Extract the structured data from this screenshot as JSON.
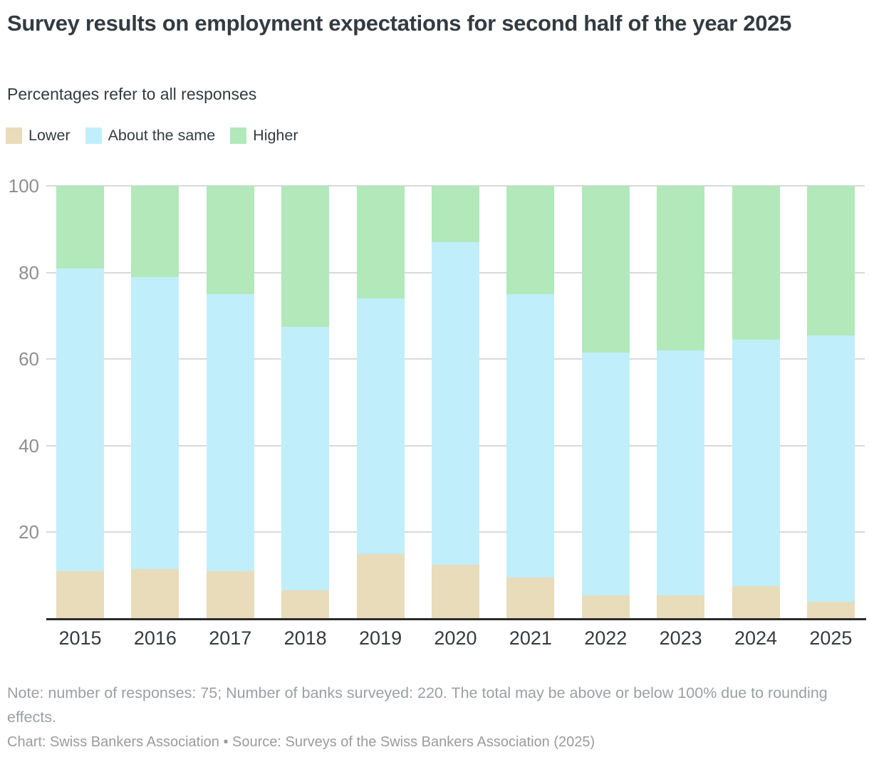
{
  "header": {
    "title": "Survey results on employment expectations for second half of the year 2025",
    "subtitle": "Percentages refer to all responses"
  },
  "legend": {
    "items": [
      {
        "label": "Lower",
        "color": "#e8dcba"
      },
      {
        "label": "About the same",
        "color": "#c1eefb"
      },
      {
        "label": "Higher",
        "color": "#b2e8ba"
      }
    ]
  },
  "chart_data": {
    "type": "bar",
    "stacked": true,
    "title": "Survey results on employment expectations for second half of the year 2025",
    "subtitle": "Percentages refer to all responses",
    "categories": [
      "2015",
      "2016",
      "2017",
      "2018",
      "2019",
      "2020",
      "2021",
      "2022",
      "2023",
      "2024",
      "2025"
    ],
    "series": [
      {
        "name": "Lower",
        "color": "#e8dcba",
        "values": [
          11,
          11.5,
          11,
          6.5,
          15,
          12.5,
          9.5,
          5.5,
          5.5,
          7.5,
          4
        ]
      },
      {
        "name": "About the same",
        "color": "#c1eefb",
        "values": [
          70,
          67.5,
          64,
          61,
          59,
          74.5,
          65.5,
          56,
          56.5,
          57,
          61.5
        ]
      },
      {
        "name": "Higher",
        "color": "#b2e8ba",
        "values": [
          19,
          21,
          25,
          32.5,
          26,
          13,
          25,
          38.5,
          38,
          35.5,
          34.5
        ]
      }
    ],
    "ylim": [
      0,
      100
    ],
    "yticks": [
      20,
      40,
      60,
      80,
      100
    ],
    "grid": true,
    "legend_position": "top",
    "colors": {
      "gridline": "#d9d9d9",
      "baseline": "#2b2b2b",
      "axis_label": "#8f8f8f",
      "category_label": "#333b41"
    }
  },
  "footer": {
    "note": "Note: number of responses: 75; Number of banks surveyed: 220. The total may be above or below 100% due to rounding effects.",
    "credit": "Chart: Swiss Bankers Association • Source: Surveys of the Swiss Bankers Association (2025)"
  }
}
